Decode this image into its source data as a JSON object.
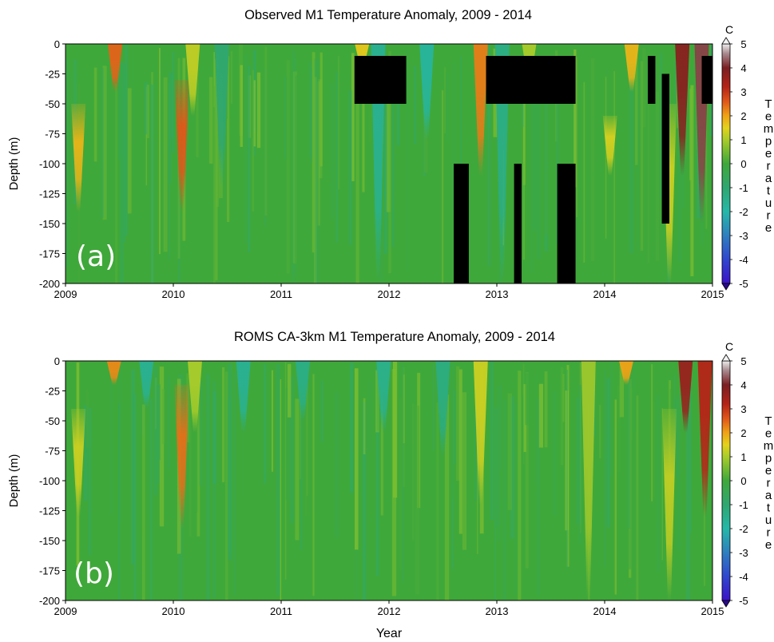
{
  "chart_data": [
    {
      "type": "heatmap",
      "title": "Observed  M1 Temperature Anomaly, 2009 - 2014",
      "panel_label": "(a)",
      "ylabel": "Depth (m)",
      "xlabel": "",
      "xlim": [
        2009,
        2015
      ],
      "ylim": [
        -200,
        0
      ],
      "x_ticks": [
        "2009",
        "2010",
        "2011",
        "2012",
        "2013",
        "2014",
        "2015"
      ],
      "y_ticks": [
        "0",
        "-25",
        "-50",
        "-75",
        "-100",
        "-125",
        "-150",
        "-175",
        "-200"
      ],
      "colorbar": {
        "unit": "C",
        "label": "Temperature",
        "range": [
          -5,
          5
        ],
        "ticks": [
          "5",
          "4",
          "3",
          "2",
          "1",
          "0",
          "-1",
          "-2",
          "-3",
          "-4",
          "-5"
        ]
      },
      "anomaly_events": [
        {
          "year": 2009.12,
          "depth_top": -50,
          "depth_bottom": -140,
          "value": 1.8
        },
        {
          "year": 2009.46,
          "depth_top": 0,
          "depth_bottom": -40,
          "value": 2.5
        },
        {
          "year": 2010.08,
          "depth_top": -30,
          "depth_bottom": -140,
          "value": 2.6
        },
        {
          "year": 2010.18,
          "depth_top": 0,
          "depth_bottom": -60,
          "value": 1.2
        },
        {
          "year": 2011.75,
          "depth_top": 0,
          "depth_bottom": -20,
          "value": 1.6
        },
        {
          "year": 2012.85,
          "depth_top": 0,
          "depth_bottom": -110,
          "value": 2.3
        },
        {
          "year": 2013.3,
          "depth_top": 0,
          "depth_bottom": -30,
          "value": 1.0
        },
        {
          "year": 2014.25,
          "depth_top": 0,
          "depth_bottom": -40,
          "value": 1.8
        },
        {
          "year": 2014.05,
          "depth_top": -60,
          "depth_bottom": -110,
          "value": 1.4
        },
        {
          "year": 2014.72,
          "depth_top": 0,
          "depth_bottom": -110,
          "value": 3.8
        },
        {
          "year": 2014.9,
          "depth_top": 0,
          "depth_bottom": -150,
          "value": 4.2
        },
        {
          "year": 2014.6,
          "depth_top": -50,
          "depth_bottom": -200,
          "value": 1.3
        }
      ],
      "cold_events": [
        {
          "year": 2011.9,
          "depth_top": 0,
          "depth_bottom": -200,
          "value": -1.6
        },
        {
          "year": 2012.35,
          "depth_top": 0,
          "depth_bottom": -80,
          "value": -1.8
        },
        {
          "year": 2013.05,
          "depth_top": 0,
          "depth_bottom": -200,
          "value": -1.4
        },
        {
          "year": 2010.45,
          "depth_top": 0,
          "depth_bottom": -120,
          "value": -1.0
        }
      ],
      "missing_data": [
        {
          "start": 2011.68,
          "end": 2012.16,
          "depth_top": -10,
          "depth_bottom": -50
        },
        {
          "start": 2012.9,
          "end": 2013.73,
          "depth_top": -10,
          "depth_bottom": -50
        },
        {
          "start": 2012.6,
          "end": 2012.74,
          "depth_top": -100,
          "depth_bottom": -200
        },
        {
          "start": 2013.16,
          "end": 2013.23,
          "depth_top": -100,
          "depth_bottom": -200
        },
        {
          "start": 2013.56,
          "end": 2013.73,
          "depth_top": -100,
          "depth_bottom": -200
        },
        {
          "start": 2014.4,
          "end": 2014.47,
          "depth_top": -10,
          "depth_bottom": -50
        },
        {
          "start": 2014.53,
          "end": 2014.6,
          "depth_top": -25,
          "depth_bottom": -150
        },
        {
          "start": 2014.9,
          "end": 2015.0,
          "depth_top": -10,
          "depth_bottom": -50
        }
      ]
    },
    {
      "type": "heatmap",
      "title": "ROMS CA-3km  M1 Temperature Anomaly, 2009 - 2014",
      "panel_label": "(b)",
      "ylabel": "Depth (m)",
      "xlabel": "Year",
      "xlim": [
        2009,
        2015
      ],
      "ylim": [
        -200,
        0
      ],
      "x_ticks": [
        "2009",
        "2010",
        "2011",
        "2012",
        "2013",
        "2014",
        "2015"
      ],
      "y_ticks": [
        "0",
        "-25",
        "-50",
        "-75",
        "-100",
        "-125",
        "-150",
        "-175",
        "-200"
      ],
      "colorbar": {
        "unit": "C",
        "label": "Temperature",
        "range": [
          -5,
          5
        ],
        "ticks": [
          "5",
          "4",
          "3",
          "2",
          "1",
          "0",
          "-1",
          "-2",
          "-3",
          "-4",
          "-5"
        ]
      },
      "anomaly_events": [
        {
          "year": 2009.12,
          "depth_top": -40,
          "depth_bottom": -130,
          "value": 1.3
        },
        {
          "year": 2009.45,
          "depth_top": 0,
          "depth_bottom": -20,
          "value": 2.2
        },
        {
          "year": 2010.08,
          "depth_top": -20,
          "depth_bottom": -140,
          "value": 2.4
        },
        {
          "year": 2010.2,
          "depth_top": 0,
          "depth_bottom": -60,
          "value": 1.0
        },
        {
          "year": 2012.85,
          "depth_top": 0,
          "depth_bottom": -120,
          "value": 1.3
        },
        {
          "year": 2013.85,
          "depth_top": 0,
          "depth_bottom": -200,
          "value": 0.9
        },
        {
          "year": 2014.2,
          "depth_top": 0,
          "depth_bottom": -20,
          "value": 2.0
        },
        {
          "year": 2014.75,
          "depth_top": 0,
          "depth_bottom": -60,
          "value": 3.6
        },
        {
          "year": 2014.93,
          "depth_top": 0,
          "depth_bottom": -130,
          "value": 3.2
        },
        {
          "year": 2014.6,
          "depth_top": -40,
          "depth_bottom": -200,
          "value": 1.2
        }
      ],
      "cold_events": [
        {
          "year": 2009.75,
          "depth_top": 0,
          "depth_bottom": -40,
          "value": -1.6
        },
        {
          "year": 2010.65,
          "depth_top": 0,
          "depth_bottom": -60,
          "value": -1.6
        },
        {
          "year": 2011.2,
          "depth_top": 0,
          "depth_bottom": -50,
          "value": -1.4
        },
        {
          "year": 2011.95,
          "depth_top": 0,
          "depth_bottom": -60,
          "value": -1.5
        },
        {
          "year": 2012.5,
          "depth_top": 0,
          "depth_bottom": -80,
          "value": -1.3
        }
      ],
      "missing_data": []
    }
  ]
}
